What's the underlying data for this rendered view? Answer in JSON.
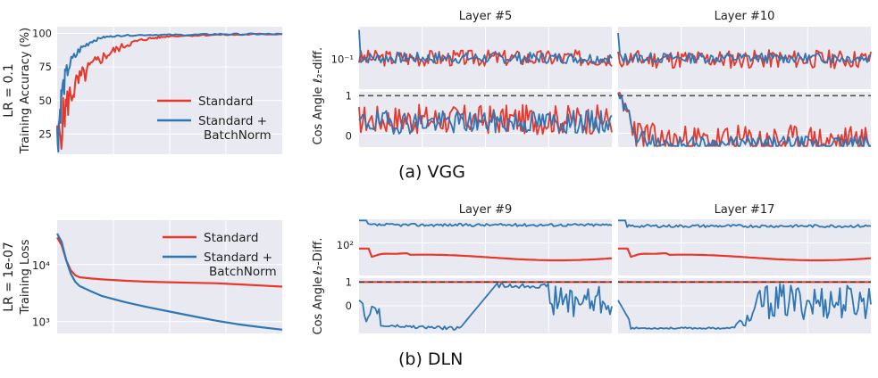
{
  "captions": {
    "a": "(a) VGG",
    "b": "(b) DLN"
  },
  "colors": {
    "standard": "#e8372b",
    "batchnorm": "#2f77b4",
    "panel_bg": "#e9e9f1",
    "grid": "#ffffff",
    "dash": "#555555"
  },
  "chart_data": [
    {
      "id": "vgg_acc",
      "type": "line",
      "row_label": "LR = 0.1",
      "ylabel": "Training Accuracy (%)",
      "xlabel": "",
      "yticks": [
        "100",
        "75",
        "50",
        "25"
      ],
      "ylim": [
        10,
        105
      ],
      "xlim": [
        0,
        100
      ],
      "legend": [
        "Standard",
        "Standard +",
        "BatchNorm"
      ],
      "legend_position": "lower-right",
      "series": [
        {
          "name": "Standard",
          "x": [
            0,
            3,
            6,
            10,
            15,
            20,
            25,
            30,
            35,
            40,
            45,
            50,
            60,
            70,
            80,
            90,
            100
          ],
          "y": [
            15,
            40,
            55,
            65,
            75,
            82,
            87,
            91,
            94,
            96,
            97,
            98,
            98.5,
            99,
            99,
            99.5,
            99.5
          ]
        },
        {
          "name": "Standard + BatchNorm",
          "x": [
            0,
            2,
            5,
            10,
            15,
            20,
            25,
            30,
            40,
            50,
            60,
            70,
            80,
            90,
            100
          ],
          "y": [
            20,
            55,
            75,
            88,
            94,
            97,
            98,
            98.5,
            99,
            99,
            99,
            99.5,
            99.5,
            99.5,
            99.5
          ]
        }
      ]
    },
    {
      "id": "vgg_l5_l2",
      "type": "line",
      "title": "Layer #5",
      "ylabel": "ℓ₂-diff.",
      "ytick": "10⁻¹",
      "scale": "log",
      "series": [
        {
          "name": "Standard",
          "pattern": "noisy",
          "base": 0.5,
          "amp": 0.22,
          "seed": 3
        },
        {
          "name": "Standard + BatchNorm",
          "pattern": "noisy",
          "base": 0.5,
          "amp": 0.15,
          "seed": 7,
          "spike": 0.95
        }
      ]
    },
    {
      "id": "vgg_l10_l2",
      "type": "line",
      "title": "Layer #10",
      "series": [
        {
          "name": "Standard",
          "pattern": "noisy",
          "base": 0.48,
          "amp": 0.25,
          "seed": 11
        },
        {
          "name": "Standard + BatchNorm",
          "pattern": "noisy",
          "base": 0.5,
          "amp": 0.14,
          "seed": 13,
          "spike": 0.9
        }
      ]
    },
    {
      "id": "vgg_l5_cos",
      "type": "line",
      "ylabel": "Cos Angle",
      "yticks": [
        "1",
        "0"
      ],
      "ylim": [
        -0.2,
        1.1
      ],
      "hline": 1,
      "series": [
        {
          "name": "Standard",
          "pattern": "noisy",
          "base": 0.5,
          "amp": 0.45,
          "seed": 17
        },
        {
          "name": "Standard + BatchNorm",
          "pattern": "noisy",
          "base": 0.45,
          "amp": 0.35,
          "seed": 19
        }
      ]
    },
    {
      "id": "vgg_l10_cos",
      "type": "line",
      "hline": 1,
      "series": [
        {
          "name": "Standard",
          "pattern": "decay_noisy",
          "base": 0.1,
          "amp": 0.3,
          "seed": 23
        },
        {
          "name": "Standard + BatchNorm",
          "pattern": "decay_noisy",
          "base": 0.05,
          "amp": 0.15,
          "seed": 29
        }
      ]
    },
    {
      "id": "dln_loss",
      "type": "line",
      "row_label": "LR = 1e-07",
      "ylabel": "Training Loss",
      "xlabel": "",
      "yticks": [
        "10⁴",
        "10³"
      ],
      "scale": "log",
      "legend": [
        "Standard",
        "Standard +",
        "BatchNorm"
      ],
      "legend_position": "upper-right",
      "series": [
        {
          "name": "Standard",
          "x": [
            0,
            2,
            4,
            6,
            8,
            10,
            15,
            20,
            30,
            40,
            50,
            60,
            70,
            80,
            90,
            100
          ],
          "y": [
            30000,
            22000,
            12000,
            8000,
            6500,
            6000,
            5700,
            5500,
            5200,
            5000,
            4900,
            4800,
            4700,
            4500,
            4300,
            4100
          ]
        },
        {
          "name": "Standard + BatchNorm",
          "x": [
            0,
            2,
            4,
            6,
            8,
            10,
            15,
            20,
            30,
            40,
            50,
            60,
            70,
            80,
            90,
            100
          ],
          "y": [
            35000,
            25000,
            12000,
            7000,
            5000,
            4200,
            3400,
            2800,
            2200,
            1800,
            1500,
            1250,
            1050,
            900,
            800,
            720
          ]
        }
      ]
    },
    {
      "id": "dln_l9_l2",
      "type": "line",
      "title": "Layer #9",
      "ylabel": "ℓ₂-Diff.",
      "ytick": "10²",
      "scale": "log",
      "series": [
        {
          "name": "Standard",
          "pattern": "smooth_red",
          "seed": 31
        },
        {
          "name": "Standard + BatchNorm",
          "pattern": "top_flat",
          "base": 0.9,
          "amp": 0.05,
          "seed": 37
        }
      ]
    },
    {
      "id": "dln_l17_l2",
      "type": "line",
      "title": "Layer #17",
      "series": [
        {
          "name": "Standard",
          "pattern": "smooth_red",
          "seed": 41
        },
        {
          "name": "Standard + BatchNorm",
          "pattern": "top_flat",
          "base": 0.88,
          "amp": 0.05,
          "seed": 43
        }
      ]
    },
    {
      "id": "dln_l9_cos",
      "type": "line",
      "ylabel": "Cos Angle",
      "yticks": [
        "1",
        "0"
      ],
      "hline": 1,
      "series": [
        {
          "name": "Standard",
          "pattern": "flat_one"
        },
        {
          "name": "Standard + BatchNorm",
          "pattern": "dln_cos9",
          "seed": 47
        }
      ]
    },
    {
      "id": "dln_l17_cos",
      "type": "line",
      "hline": 1,
      "series": [
        {
          "name": "Standard",
          "pattern": "flat_one"
        },
        {
          "name": "Standard + BatchNorm",
          "pattern": "dln_cos17",
          "seed": 53
        }
      ]
    }
  ]
}
